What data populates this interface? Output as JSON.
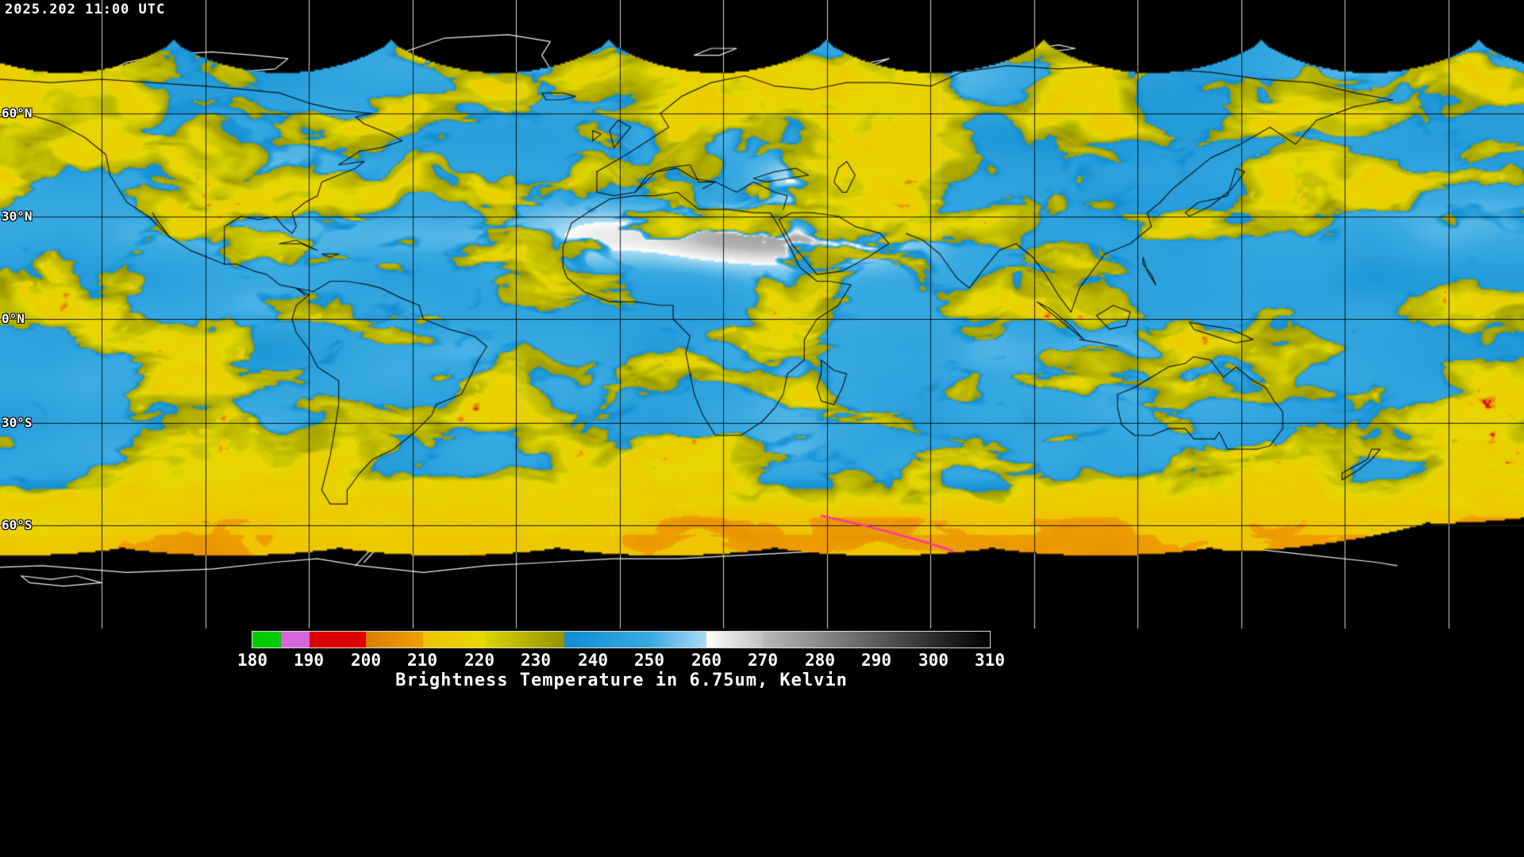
{
  "header": {
    "timestamp": "2025.202 11:00 UTC"
  },
  "map": {
    "lat_labels": [
      "60°N",
      "30°N",
      "0°N",
      "30°S",
      "60°S"
    ],
    "anomaly_line_color": "#ff36a2",
    "grid_color_over_data": "#000000",
    "grid_color_over_void": "#ffffff"
  },
  "colorbar": {
    "min": 180,
    "max": 310,
    "ticks": [
      "180",
      "190",
      "200",
      "210",
      "220",
      "230",
      "240",
      "250",
      "260",
      "270",
      "280",
      "290",
      "300",
      "310"
    ],
    "caption": "Brightness Temperature in 6.75um, Kelvin",
    "palette": [
      {
        "from": 180,
        "to": 185,
        "c1": "#00cc00",
        "c2": "#00cc00"
      },
      {
        "from": 185,
        "to": 190,
        "c1": "#d966d9",
        "c2": "#d966d9"
      },
      {
        "from": 190,
        "to": 200,
        "c1": "#dc0000",
        "c2": "#dc0000"
      },
      {
        "from": 200,
        "to": 210,
        "c1": "#d88000",
        "c2": "#f0a000"
      },
      {
        "from": 210,
        "to": 221,
        "c1": "#f0c400",
        "c2": "#e6d800"
      },
      {
        "from": 221,
        "to": 235,
        "c1": "#dcd400",
        "c2": "#949400"
      },
      {
        "from": 235,
        "to": 250,
        "c1": "#118ed2",
        "c2": "#39aae2"
      },
      {
        "from": 250,
        "to": 260,
        "c1": "#39aae2",
        "c2": "#aadcf4"
      },
      {
        "from": 260,
        "to": 270,
        "c1": "#ffffff",
        "c2": "#c2c2c2"
      },
      {
        "from": 270,
        "to": 310,
        "c1": "#bababa",
        "c2": "#000000"
      }
    ]
  }
}
